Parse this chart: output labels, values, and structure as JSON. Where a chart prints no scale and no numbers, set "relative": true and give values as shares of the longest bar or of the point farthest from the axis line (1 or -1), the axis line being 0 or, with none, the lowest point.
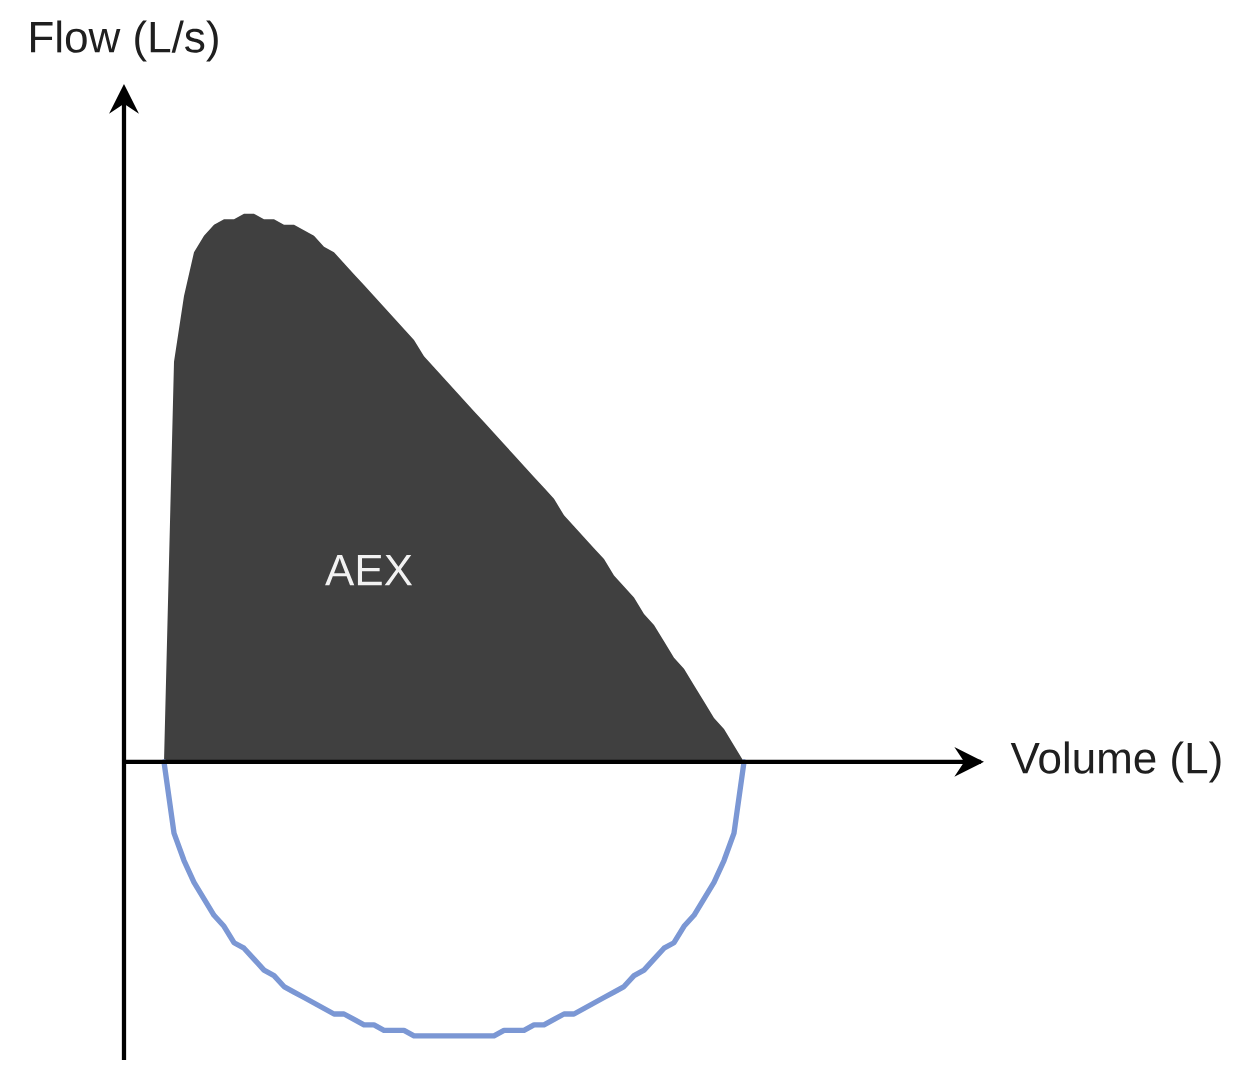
{
  "chart_data": {
    "type": "area",
    "ylabel": "Flow (L/s)",
    "annotations": [
      "Volume (L)"
    ],
    "relative": true,
    "categories": [
      null,
      null,
      null,
      null,
      null,
      null,
      null,
      null,
      null,
      null,
      null,
      null,
      null,
      null,
      null,
      null,
      null,
      null,
      null,
      null,
      null,
      null,
      null,
      null,
      null,
      null,
      null,
      null,
      null,
      null,
      null,
      null,
      null,
      null,
      null,
      null,
      null,
      null,
      null,
      null,
      null,
      null,
      null,
      null,
      null,
      null,
      null,
      null,
      null,
      null,
      null,
      null,
      null,
      null,
      null,
      null,
      null,
      null,
      null
    ],
    "series": [
      {
        "name": "AEX",
        "color": "#404040",
        "values": [
          0,
          0.73,
          0.85,
          0.93,
          0.96,
          0.98,
          0.99,
          0.99,
          1,
          1,
          0.99,
          0.99,
          0.98,
          0.98,
          0.97,
          0.96,
          0.94,
          0.93,
          0.91,
          0.89,
          0.87,
          0.85,
          0.83,
          0.81,
          0.79,
          0.77,
          0.74,
          0.72,
          0.7,
          0.68,
          0.66,
          0.64,
          0.62,
          0.6,
          0.58,
          0.56,
          0.54,
          0.52,
          0.5,
          0.48,
          0.45,
          0.43,
          0.41,
          0.39,
          0.37,
          0.34,
          0.32,
          0.3,
          0.27,
          0.25,
          0.22,
          0.19,
          0.17,
          0.14,
          0.11,
          0.08,
          0.06,
          0.03,
          0
        ]
      },
      {
        "type": "line",
        "color": "#7b97d4",
        "values": [
          0,
          -0.13,
          -0.18,
          -0.22,
          -0.25,
          -0.28,
          -0.3,
          -0.33,
          -0.34,
          -0.36,
          -0.38,
          -0.39,
          -0.41,
          -0.42,
          -0.43,
          -0.44,
          -0.45,
          -0.46,
          -0.46,
          -0.47,
          -0.48,
          -0.48,
          -0.49,
          -0.49,
          -0.49,
          -0.5,
          -0.5,
          -0.5,
          -0.5,
          -0.5,
          -0.5,
          -0.5,
          -0.5,
          -0.5,
          -0.49,
          -0.49,
          -0.49,
          -0.48,
          -0.48,
          -0.47,
          -0.46,
          -0.46,
          -0.45,
          -0.44,
          -0.43,
          -0.42,
          -0.41,
          -0.39,
          -0.38,
          -0.36,
          -0.34,
          -0.33,
          -0.3,
          -0.28,
          -0.25,
          -0.22,
          -0.18,
          -0.13,
          0
        ]
      }
    ]
  }
}
